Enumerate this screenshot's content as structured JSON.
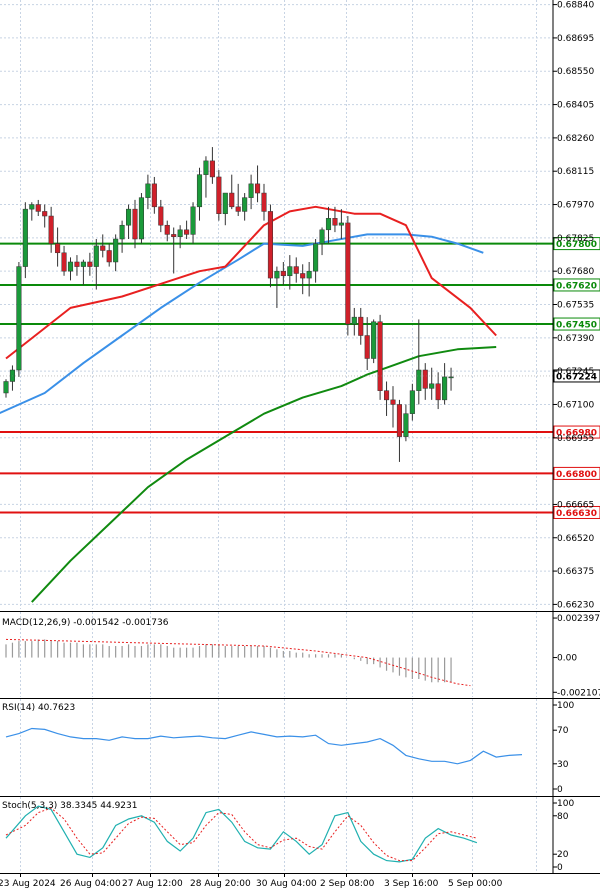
{
  "chart_data": [
    {
      "type": "candlestick",
      "symbol": "AUDUSD",
      "yticks": [
        "0.68840",
        "0.68695",
        "0.68550",
        "0.68405",
        "0.68260",
        "0.68115",
        "0.67970",
        "0.67825",
        "0.67680",
        "0.67535",
        "0.67390",
        "0.67245",
        "0.67100",
        "0.66955",
        "0.66665",
        "0.66520",
        "0.66375",
        "0.66230"
      ],
      "ylim": [
        0.6621,
        0.6886
      ],
      "xlabels": [
        "23 Aug 2024",
        "26 Aug 04:00",
        "27 Aug 12:00",
        "28 Aug 20:00",
        "30 Aug 04:00",
        "2 Sep 08:00",
        "3 Sep 16:00",
        "5 Sep 00:00"
      ],
      "current_price": "0.67224",
      "levels": [
        {
          "label": "0.67800",
          "value": 0.678,
          "color": "#0a8a0a"
        },
        {
          "label": "0.67620",
          "value": 0.6762,
          "color": "#0a8a0a"
        },
        {
          "label": "0.67450",
          "value": 0.6745,
          "color": "#0a8a0a"
        },
        {
          "label": "0.66980",
          "value": 0.6698,
          "color": "#e01010"
        },
        {
          "label": "0.66800",
          "value": 0.668,
          "color": "#e01010"
        },
        {
          "label": "0.66630",
          "value": 0.6663,
          "color": "#e01010"
        }
      ],
      "candles": [
        [
          0.6715,
          0.6721,
          0.6713,
          0.672
        ],
        [
          0.672,
          0.6727,
          0.6716,
          0.6725
        ],
        [
          0.6725,
          0.6772,
          0.6722,
          0.677
        ],
        [
          0.677,
          0.6798,
          0.6765,
          0.6795
        ],
        [
          0.6795,
          0.6798,
          0.679,
          0.6797
        ],
        [
          0.6797,
          0.6799,
          0.6792,
          0.6794
        ],
        [
          0.6794,
          0.6797,
          0.6787,
          0.6792
        ],
        [
          0.6792,
          0.6796,
          0.6776,
          0.678
        ],
        [
          0.678,
          0.6787,
          0.677,
          0.6776
        ],
        [
          0.6776,
          0.6779,
          0.6766,
          0.6768
        ],
        [
          0.6768,
          0.6774,
          0.6764,
          0.6772
        ],
        [
          0.6772,
          0.6775,
          0.6766,
          0.677
        ],
        [
          0.677,
          0.6773,
          0.6762,
          0.6772
        ],
        [
          0.6772,
          0.6776,
          0.6766,
          0.677
        ],
        [
          0.677,
          0.6782,
          0.676,
          0.6779
        ],
        [
          0.6779,
          0.6784,
          0.6774,
          0.6777
        ],
        [
          0.6777,
          0.678,
          0.677,
          0.6772
        ],
        [
          0.6772,
          0.6784,
          0.6768,
          0.6782
        ],
        [
          0.6782,
          0.679,
          0.6776,
          0.6788
        ],
        [
          0.6788,
          0.6797,
          0.6782,
          0.6795
        ],
        [
          0.6795,
          0.6799,
          0.6778,
          0.6782
        ],
        [
          0.6782,
          0.6802,
          0.678,
          0.68
        ],
        [
          0.68,
          0.681,
          0.6795,
          0.6806
        ],
        [
          0.6806,
          0.6809,
          0.6793,
          0.6796
        ],
        [
          0.6796,
          0.6799,
          0.6785,
          0.6788
        ],
        [
          0.6788,
          0.679,
          0.6781,
          0.6784
        ],
        [
          0.6784,
          0.6787,
          0.6767,
          0.6783
        ],
        [
          0.6783,
          0.6788,
          0.6778,
          0.6786
        ],
        [
          0.6786,
          0.679,
          0.6782,
          0.6784
        ],
        [
          0.6784,
          0.6798,
          0.678,
          0.6796
        ],
        [
          0.6796,
          0.6813,
          0.679,
          0.681
        ],
        [
          0.681,
          0.6818,
          0.68,
          0.6816
        ],
        [
          0.6816,
          0.6822,
          0.6806,
          0.6809
        ],
        [
          0.6809,
          0.6812,
          0.679,
          0.6793
        ],
        [
          0.6793,
          0.68,
          0.6788,
          0.6802
        ],
        [
          0.6802,
          0.681,
          0.6795,
          0.6796
        ],
        [
          0.6796,
          0.6806,
          0.6792,
          0.6794
        ],
        [
          0.6794,
          0.6802,
          0.679,
          0.68
        ],
        [
          0.68,
          0.681,
          0.6795,
          0.6806
        ],
        [
          0.6806,
          0.6814,
          0.6798,
          0.6802
        ],
        [
          0.6802,
          0.6806,
          0.679,
          0.6794
        ],
        [
          0.6794,
          0.6797,
          0.6761,
          0.6765
        ],
        [
          0.6765,
          0.677,
          0.6752,
          0.6768
        ],
        [
          0.6768,
          0.6772,
          0.6762,
          0.6766
        ],
        [
          0.6766,
          0.6775,
          0.676,
          0.677
        ],
        [
          0.677,
          0.6774,
          0.6763,
          0.6767
        ],
        [
          0.6767,
          0.6771,
          0.6758,
          0.6765
        ],
        [
          0.6765,
          0.6772,
          0.6757,
          0.6768
        ],
        [
          0.6768,
          0.6782,
          0.6763,
          0.678
        ],
        [
          0.678,
          0.6787,
          0.6775,
          0.6786
        ],
        [
          0.6786,
          0.6796,
          0.678,
          0.6791
        ],
        [
          0.6791,
          0.6796,
          0.6785,
          0.6788
        ],
        [
          0.6788,
          0.6795,
          0.6782,
          0.6789
        ],
        [
          0.6789,
          0.6792,
          0.674,
          0.6745
        ],
        [
          0.6745,
          0.6752,
          0.674,
          0.6748
        ],
        [
          0.6748,
          0.6752,
          0.6736,
          0.674
        ],
        [
          0.674,
          0.6748,
          0.6725,
          0.673
        ],
        [
          0.673,
          0.6747,
          0.6728,
          0.6746
        ],
        [
          0.6746,
          0.6749,
          0.6712,
          0.6716
        ],
        [
          0.6716,
          0.672,
          0.6705,
          0.6712
        ],
        [
          0.6712,
          0.6718,
          0.67,
          0.671
        ],
        [
          0.671,
          0.6712,
          0.6685,
          0.6696
        ],
        [
          0.6696,
          0.671,
          0.6694,
          0.6706
        ],
        [
          0.6706,
          0.6719,
          0.6703,
          0.6716
        ],
        [
          0.6716,
          0.6747,
          0.671,
          0.6725
        ],
        [
          0.6725,
          0.6728,
          0.6712,
          0.6717
        ],
        [
          0.6717,
          0.6726,
          0.6712,
          0.6719
        ],
        [
          0.6719,
          0.6724,
          0.6708,
          0.6712
        ],
        [
          0.6712,
          0.6728,
          0.671,
          0.6722
        ],
        [
          0.6722,
          0.6726,
          0.6716,
          0.6722
        ]
      ],
      "ma_fast": [
        [
          0,
          0.673
        ],
        [
          10,
          0.6752
        ],
        [
          18,
          0.6757
        ],
        [
          30,
          0.6768
        ],
        [
          34,
          0.677
        ],
        [
          40,
          0.6788
        ],
        [
          44,
          0.6794
        ],
        [
          48,
          0.6796
        ],
        [
          54,
          0.6793
        ],
        [
          58,
          0.6793
        ],
        [
          62,
          0.6788
        ],
        [
          66,
          0.6765
        ],
        [
          72,
          0.6752
        ],
        [
          76,
          0.674
        ]
      ],
      "ma_mid": [
        [
          -2,
          0.6705
        ],
        [
          6,
          0.6715
        ],
        [
          12,
          0.6728
        ],
        [
          18,
          0.674
        ],
        [
          24,
          0.6752
        ],
        [
          30,
          0.6763
        ],
        [
          36,
          0.6773
        ],
        [
          40,
          0.678
        ],
        [
          46,
          0.6779
        ],
        [
          50,
          0.6781
        ],
        [
          56,
          0.6784
        ],
        [
          62,
          0.6784
        ],
        [
          66,
          0.6783
        ],
        [
          70,
          0.678
        ],
        [
          74,
          0.6776
        ]
      ],
      "ma_slow": [
        [
          4,
          0.6624
        ],
        [
          10,
          0.6642
        ],
        [
          16,
          0.6658
        ],
        [
          22,
          0.6674
        ],
        [
          28,
          0.6686
        ],
        [
          34,
          0.6696
        ],
        [
          40,
          0.6706
        ],
        [
          46,
          0.6713
        ],
        [
          52,
          0.6718
        ],
        [
          56,
          0.6723
        ],
        [
          60,
          0.6727
        ],
        [
          64,
          0.6731
        ],
        [
          70,
          0.6734
        ],
        [
          76,
          0.6735
        ]
      ]
    },
    {
      "type": "bar",
      "name": "MACD(12,26,9)",
      "label": "MACD(12,26,9) -0.001542 -0.001736",
      "yticks": [
        "0.002397",
        "0.00",
        "-0.002107"
      ],
      "ylim": [
        -0.00215,
        0.0024
      ],
      "histogram": [
        0.0008,
        0.0009,
        0.001,
        0.001,
        0.001,
        0.0011,
        0.0011,
        0.001,
        0.001,
        0.0009,
        0.0009,
        0.0009,
        0.0008,
        0.0008,
        0.0008,
        0.0008,
        0.0007,
        0.0007,
        0.0007,
        0.0008,
        0.0007,
        0.0007,
        0.0008,
        0.0008,
        0.0008,
        0.0007,
        0.0006,
        0.0006,
        0.0006,
        0.0006,
        0.0007,
        0.0008,
        0.0008,
        0.0008,
        0.0007,
        0.0007,
        0.0007,
        0.0007,
        0.0007,
        0.0007,
        0.0007,
        0.0006,
        0.0005,
        0.0004,
        0.0004,
        0.0003,
        0.0003,
        0.0002,
        0.0002,
        0.0002,
        0.0002,
        0.0002,
        0.0002,
        0.0,
        -0.0001,
        -0.0002,
        -0.0004,
        -0.0004,
        -0.0006,
        -0.0008,
        -0.0009,
        -0.0011,
        -0.0012,
        -0.0013,
        -0.0013,
        -0.0014,
        -0.0015,
        -0.0015,
        -0.0015,
        -0.0015
      ],
      "signal": [
        [
          0,
          0.0011
        ],
        [
          20,
          0.0009
        ],
        [
          40,
          0.0007
        ],
        [
          48,
          0.0004
        ],
        [
          56,
          0.0
        ],
        [
          62,
          -0.0007
        ],
        [
          66,
          -0.0012
        ],
        [
          70,
          -0.0016
        ],
        [
          72,
          -0.0017
        ]
      ]
    },
    {
      "type": "line",
      "name": "RSI(14)",
      "label": "RSI(14) 40.7623",
      "yticks": [
        "100",
        "70",
        "30",
        "0"
      ],
      "ylim": [
        0,
        100
      ],
      "values": [
        [
          0,
          62
        ],
        [
          2,
          66
        ],
        [
          4,
          72
        ],
        [
          6,
          71
        ],
        [
          8,
          66
        ],
        [
          10,
          62
        ],
        [
          12,
          60
        ],
        [
          14,
          60
        ],
        [
          16,
          58
        ],
        [
          18,
          62
        ],
        [
          20,
          60
        ],
        [
          22,
          60
        ],
        [
          24,
          63
        ],
        [
          26,
          61
        ],
        [
          28,
          62
        ],
        [
          30,
          63
        ],
        [
          32,
          61
        ],
        [
          34,
          60
        ],
        [
          36,
          64
        ],
        [
          38,
          68
        ],
        [
          40,
          65
        ],
        [
          42,
          62
        ],
        [
          44,
          63
        ],
        [
          46,
          62
        ],
        [
          48,
          64
        ],
        [
          50,
          54
        ],
        [
          52,
          52
        ],
        [
          54,
          54
        ],
        [
          56,
          56
        ],
        [
          58,
          60
        ],
        [
          60,
          52
        ],
        [
          62,
          40
        ],
        [
          64,
          36
        ],
        [
          66,
          33
        ],
        [
          68,
          33
        ],
        [
          70,
          30
        ],
        [
          72,
          34
        ],
        [
          74,
          45
        ],
        [
          76,
          38
        ],
        [
          78,
          40
        ],
        [
          80,
          41
        ]
      ]
    },
    {
      "type": "line",
      "name": "Stoch(5,3,3)",
      "label": "Stoch(5,3,3) 38.3345 44.9231",
      "yticks": [
        "100",
        "80",
        "20",
        "0"
      ],
      "ylim": [
        0,
        100
      ],
      "k": [
        [
          0,
          45
        ],
        [
          3,
          80
        ],
        [
          5,
          95
        ],
        [
          7,
          90
        ],
        [
          9,
          55
        ],
        [
          11,
          20
        ],
        [
          13,
          15
        ],
        [
          15,
          30
        ],
        [
          17,
          65
        ],
        [
          19,
          75
        ],
        [
          21,
          80
        ],
        [
          23,
          70
        ],
        [
          25,
          40
        ],
        [
          27,
          25
        ],
        [
          29,
          45
        ],
        [
          31,
          85
        ],
        [
          33,
          90
        ],
        [
          35,
          70
        ],
        [
          37,
          40
        ],
        [
          39,
          30
        ],
        [
          41,
          28
        ],
        [
          43,
          55
        ],
        [
          45,
          40
        ],
        [
          47,
          20
        ],
        [
          49,
          35
        ],
        [
          51,
          80
        ],
        [
          53,
          85
        ],
        [
          55,
          40
        ],
        [
          57,
          20
        ],
        [
          59,
          10
        ],
        [
          61,
          8
        ],
        [
          63,
          12
        ],
        [
          65,
          45
        ],
        [
          67,
          60
        ],
        [
          69,
          50
        ],
        [
          71,
          45
        ],
        [
          73,
          38
        ]
      ],
      "d": [
        [
          0,
          50
        ],
        [
          3,
          65
        ],
        [
          5,
          85
        ],
        [
          7,
          92
        ],
        [
          9,
          75
        ],
        [
          11,
          45
        ],
        [
          13,
          20
        ],
        [
          15,
          22
        ],
        [
          17,
          45
        ],
        [
          19,
          68
        ],
        [
          21,
          78
        ],
        [
          23,
          76
        ],
        [
          25,
          55
        ],
        [
          27,
          35
        ],
        [
          29,
          38
        ],
        [
          31,
          65
        ],
        [
          33,
          85
        ],
        [
          35,
          82
        ],
        [
          37,
          55
        ],
        [
          39,
          35
        ],
        [
          41,
          30
        ],
        [
          43,
          42
        ],
        [
          45,
          45
        ],
        [
          47,
          32
        ],
        [
          49,
          28
        ],
        [
          51,
          55
        ],
        [
          53,
          80
        ],
        [
          55,
          65
        ],
        [
          57,
          38
        ],
        [
          59,
          18
        ],
        [
          61,
          10
        ],
        [
          63,
          10
        ],
        [
          65,
          30
        ],
        [
          67,
          52
        ],
        [
          69,
          55
        ],
        [
          71,
          50
        ],
        [
          73,
          45
        ]
      ]
    }
  ]
}
